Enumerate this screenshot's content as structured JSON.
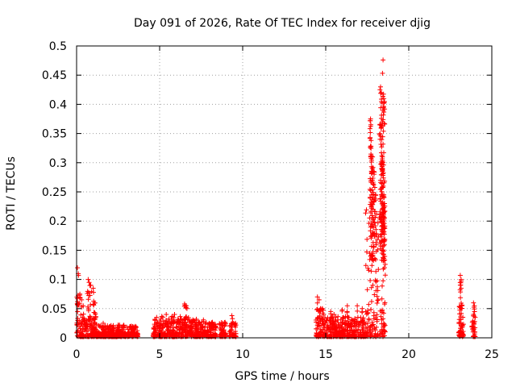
{
  "chart_data": {
    "type": "scatter",
    "title": "Day 091 of 2026, Rate Of TEC Index for receiver djig",
    "xlabel": "GPS time / hours",
    "ylabel": "ROTI / TECUs",
    "xlim": [
      0,
      25
    ],
    "ylim": [
      0,
      0.5
    ],
    "xticks": [
      0,
      5,
      10,
      15,
      20,
      25
    ],
    "yticks": [
      0,
      0.05,
      0.1,
      0.15,
      0.2,
      0.25,
      0.3,
      0.35,
      0.4,
      0.45,
      0.5
    ],
    "grid": true,
    "marker": "plus",
    "color": "#ff0000",
    "series": [
      {
        "name": "ROTI",
        "segments": [
          {
            "x_start": 0.0,
            "x_end": 1.2,
            "baseline_max": 0.035,
            "peaks": [
              [
                0.05,
                0.12
              ],
              [
                0.1,
                0.11
              ],
              [
                0.2,
                0.075
              ],
              [
                0.3,
                0.065
              ],
              [
                0.4,
                0.055
              ],
              [
                0.7,
                0.1
              ],
              [
                0.75,
                0.095
              ],
              [
                0.85,
                0.09
              ],
              [
                1.0,
                0.085
              ],
              [
                1.1,
                0.06
              ]
            ]
          },
          {
            "x_start": 1.2,
            "x_end": 3.7,
            "baseline_max": 0.02,
            "peaks": [
              [
                1.6,
                0.025
              ],
              [
                2.5,
                0.022
              ],
              [
                3.3,
                0.02
              ]
            ]
          },
          {
            "x_start": 4.6,
            "x_end": 6.8,
            "baseline_max": 0.035,
            "peaks": [
              [
                5.4,
                0.04
              ],
              [
                5.9,
                0.04
              ],
              [
                6.5,
                0.058
              ],
              [
                6.6,
                0.055
              ]
            ]
          },
          {
            "x_start": 6.8,
            "x_end": 7.8,
            "baseline_max": 0.03,
            "peaks": [
              [
                7.2,
                0.03
              ],
              [
                6.9,
                0.028
              ]
            ]
          },
          {
            "x_start": 7.8,
            "x_end": 8.4,
            "baseline_max": 0.025,
            "peaks": [
              [
                8.0,
                0.025
              ]
            ]
          },
          {
            "x_start": 8.6,
            "x_end": 9.0,
            "baseline_max": 0.025,
            "peaks": [
              [
                8.8,
                0.025
              ]
            ]
          },
          {
            "x_start": 9.2,
            "x_end": 9.6,
            "baseline_max": 0.025,
            "peaks": [
              [
                9.35,
                0.038
              ]
            ]
          },
          {
            "x_start": 14.4,
            "x_end": 15.0,
            "baseline_max": 0.05,
            "peaks": [
              [
                14.5,
                0.07
              ],
              [
                14.6,
                0.065
              ],
              [
                14.8,
                0.05
              ]
            ]
          },
          {
            "x_start": 15.0,
            "x_end": 17.4,
            "baseline_max": 0.035,
            "peaks": [
              [
                15.3,
                0.045
              ],
              [
                15.5,
                0.04
              ],
              [
                16.0,
                0.048
              ],
              [
                16.3,
                0.055
              ],
              [
                16.9,
                0.055
              ],
              [
                17.2,
                0.05
              ]
            ]
          },
          {
            "x_start": 17.4,
            "x_end": 18.6,
            "baseline_max": 0.22,
            "peaks": [
              [
                17.7,
                0.375
              ],
              [
                17.72,
                0.365
              ],
              [
                17.8,
                0.29
              ],
              [
                17.82,
                0.31
              ],
              [
                17.9,
                0.285
              ],
              [
                18.0,
                0.245
              ],
              [
                18.3,
                0.43
              ],
              [
                18.35,
                0.42
              ],
              [
                18.4,
                0.37
              ],
              [
                18.45,
                0.476
              ],
              [
                18.5,
                0.41
              ],
              [
                18.45,
                0.3
              ],
              [
                18.5,
                0.245
              ],
              [
                18.5,
                0.23
              ]
            ]
          },
          {
            "x_start": 23.0,
            "x_end": 23.3,
            "baseline_max": 0.025,
            "peaks": [
              [
                23.1,
                0.107
              ],
              [
                23.15,
                0.1
              ],
              [
                23.1,
                0.09
              ],
              [
                23.15,
                0.085
              ],
              [
                23.2,
                0.055
              ]
            ]
          },
          {
            "x_start": 23.8,
            "x_end": 24.0,
            "baseline_max": 0.03,
            "peaks": [
              [
                23.9,
                0.06
              ],
              [
                23.95,
                0.055
              ],
              [
                23.9,
                0.04
              ]
            ]
          }
        ]
      }
    ]
  }
}
